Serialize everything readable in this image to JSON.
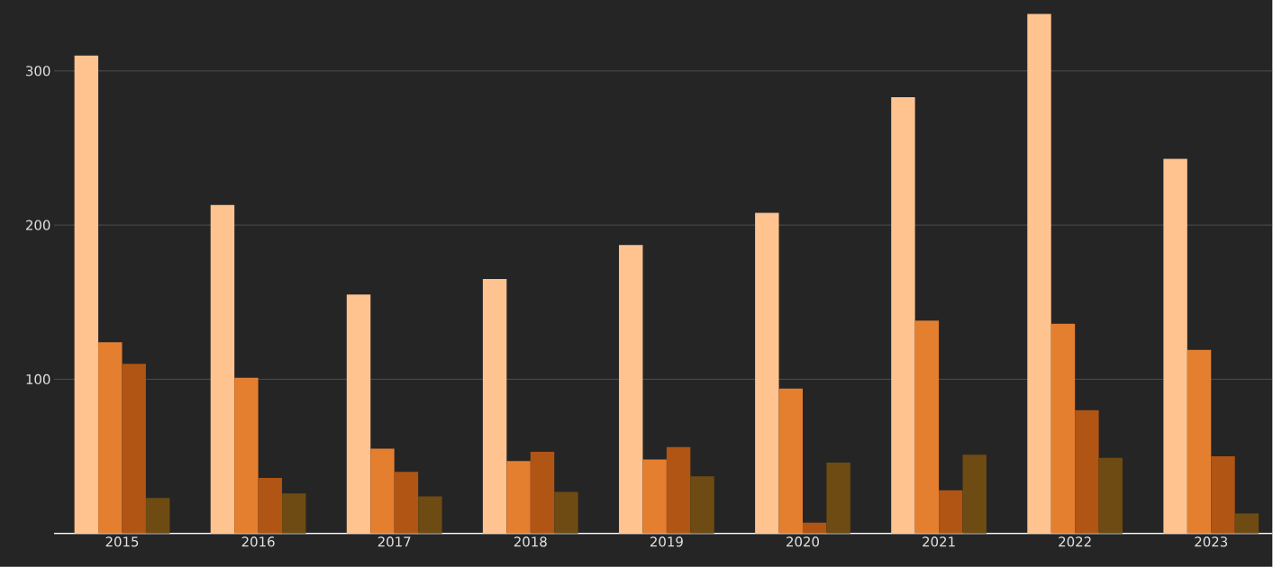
{
  "chart_data": {
    "type": "bar",
    "categories": [
      "2015",
      "2016",
      "2017",
      "2018",
      "2019",
      "2020",
      "2021",
      "2022",
      "2023"
    ],
    "series": [
      {
        "color": "#ffc390",
        "values": [
          310,
          213,
          155,
          165,
          187,
          208,
          283,
          337,
          243
        ]
      },
      {
        "color": "#e57f30",
        "values": [
          124,
          101,
          55,
          47,
          48,
          94,
          138,
          136,
          119
        ]
      },
      {
        "color": "#b05514",
        "values": [
          110,
          36,
          40,
          53,
          56,
          7,
          28,
          80,
          50
        ]
      },
      {
        "color": "#6e4b12",
        "values": [
          23,
          26,
          24,
          27,
          37,
          46,
          51,
          49,
          13
        ]
      }
    ],
    "ylim": [
      0,
      346
    ],
    "yticks": [
      100,
      200,
      300
    ],
    "grid": "y"
  }
}
